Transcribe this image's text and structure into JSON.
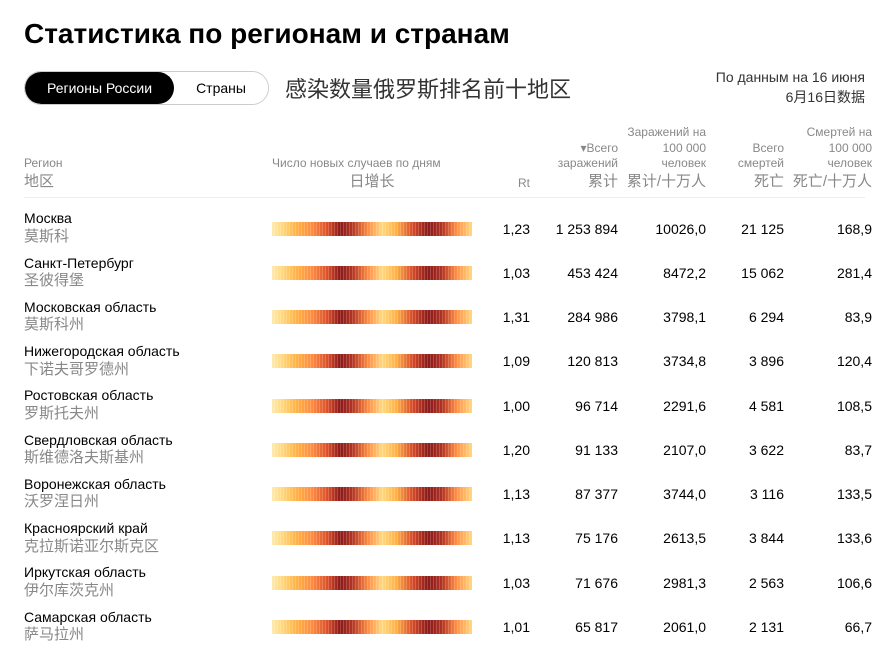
{
  "title": "Статистика по регионам и странам",
  "tabs": {
    "regions": "Регионы России",
    "countries": "Страны"
  },
  "subtitle": "感染数量俄罗斯排名前十地区",
  "date": {
    "ru": "По данным на 16 июня",
    "cn": "6月16日数据"
  },
  "headers": {
    "region_ru": "Регион",
    "region_cn": "地区",
    "heat_ru": "Число новых случаев по дням",
    "heat_cn": "日增长",
    "rt": "Rt",
    "total_ru": "▾Всего заражений",
    "total_cn": "累计",
    "per100k_ru": "Заражений на 100 000 человек",
    "per100k_cn": "累计/十万人",
    "deaths_ru": "Всего смертей",
    "deaths_cn": "死亡",
    "deaths100k_ru": "Смертей на 100 000 человек",
    "deaths100k_cn": "死亡/十万人"
  },
  "heatmap_palette": [
    "#ffe9b0",
    "#ffd980",
    "#ffb347",
    "#ff8c42",
    "#d94e2a",
    "#8b1a1a",
    "#b03424"
  ],
  "rows": [
    {
      "ru": "Москва",
      "cn": "莫斯科",
      "rt": "1,23",
      "total": "1 253 894",
      "per100k": "10026,0",
      "deaths": "21 125",
      "deaths100k": "168,9"
    },
    {
      "ru": "Санкт-Петербург",
      "cn": "圣彼得堡",
      "rt": "1,03",
      "total": "453 424",
      "per100k": "8472,2",
      "deaths": "15 062",
      "deaths100k": "281,4"
    },
    {
      "ru": "Московская область",
      "cn": "莫斯科州",
      "rt": "1,31",
      "total": "284 986",
      "per100k": "3798,1",
      "deaths": "6 294",
      "deaths100k": "83,9"
    },
    {
      "ru": "Нижегородская область",
      "cn": "下诺夫哥罗德州",
      "rt": "1,09",
      "total": "120 813",
      "per100k": "3734,8",
      "deaths": "3 896",
      "deaths100k": "120,4"
    },
    {
      "ru": "Ростовская область",
      "cn": "罗斯托夫州",
      "rt": "1,00",
      "total": "96 714",
      "per100k": "2291,6",
      "deaths": "4 581",
      "deaths100k": "108,5"
    },
    {
      "ru": "Свердловская область",
      "cn": "斯维德洛夫斯基州",
      "rt": "1,20",
      "total": "91 133",
      "per100k": "2107,0",
      "deaths": "3 622",
      "deaths100k": "83,7"
    },
    {
      "ru": "Воронежская область",
      "cn": "沃罗涅日州",
      "rt": "1,13",
      "total": "87 377",
      "per100k": "3744,0",
      "deaths": "3 116",
      "deaths100k": "133,5"
    },
    {
      "ru": "Красноярский край",
      "cn": "克拉斯诺亚尔斯克区",
      "rt": "1,13",
      "total": "75 176",
      "per100k": "2613,5",
      "deaths": "3 844",
      "deaths100k": "133,6"
    },
    {
      "ru": "Иркутская область",
      "cn": "伊尔库茨克州",
      "rt": "1,03",
      "total": "71 676",
      "per100k": "2981,3",
      "deaths": "2 563",
      "deaths100k": "106,6"
    },
    {
      "ru": "Самарская область",
      "cn": "萨马拉州",
      "rt": "1,01",
      "total": "65 817",
      "per100k": "2061,0",
      "deaths": "2 131",
      "deaths100k": "66,7"
    }
  ]
}
